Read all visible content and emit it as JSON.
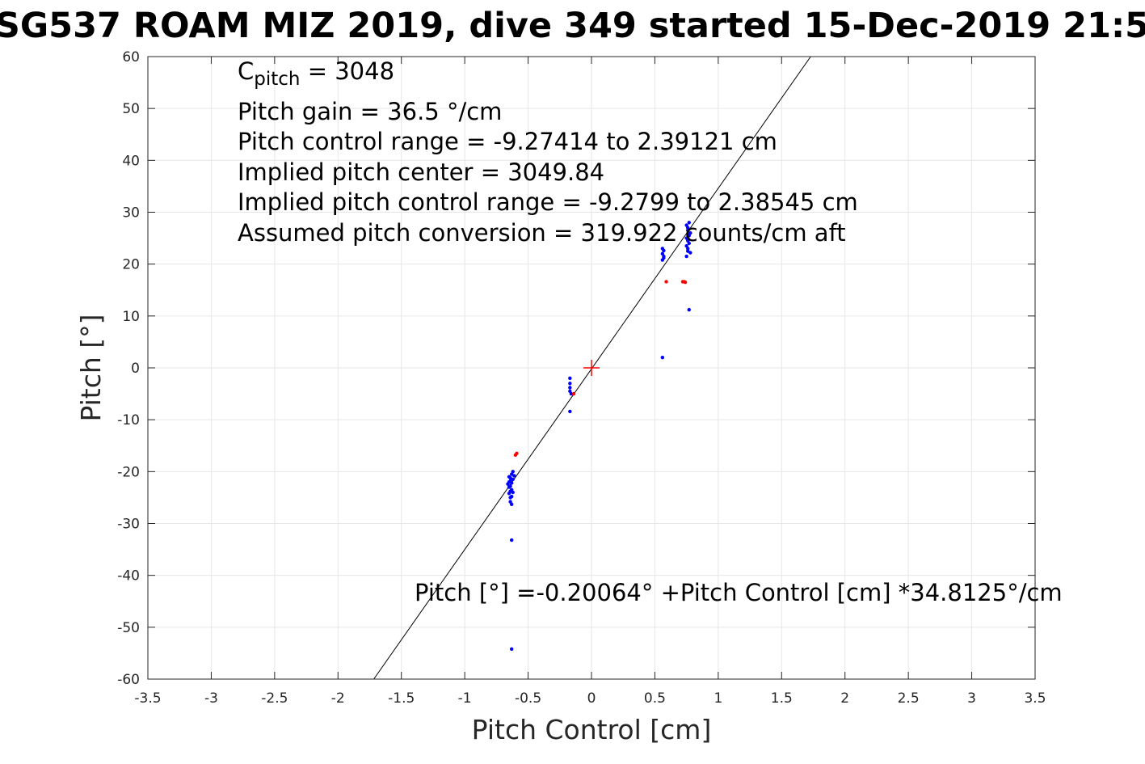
{
  "chart_data": {
    "type": "scatter",
    "title": "SG537 ROAM MIZ 2019, dive 349 started 15-Dec-2019 21:5",
    "xlabel": "Pitch Control [cm]",
    "ylabel": "Pitch [°]",
    "xlim": [
      -3.5,
      3.5
    ],
    "ylim": [
      -60,
      60
    ],
    "xticks": [
      -3.5,
      -3,
      -2.5,
      -2,
      -1.5,
      -1,
      -0.5,
      0,
      0.5,
      1,
      1.5,
      2,
      2.5,
      3,
      3.5
    ],
    "xtick_labels": [
      "-3.5",
      "-3",
      "-2.5",
      "-2",
      "-1.5",
      "-1",
      "-0.5",
      "0",
      "0.5",
      "1",
      "1.5",
      "2",
      "2.5",
      "3",
      "3.5"
    ],
    "yticks": [
      -60,
      -50,
      -40,
      -30,
      -20,
      -10,
      0,
      10,
      20,
      30,
      40,
      50,
      60
    ],
    "ytick_labels": [
      "-60",
      "-50",
      "-40",
      "-30",
      "-20",
      "-10",
      "0",
      "10",
      "20",
      "30",
      "40",
      "50",
      "60"
    ],
    "grid": true,
    "fit_line": {
      "intercept": -0.20064,
      "slope": 34.8125,
      "color": "#000000"
    },
    "center_marker": {
      "x": 0,
      "y": 0,
      "color": "#ff0000"
    },
    "series": [
      {
        "color": "#0000ff",
        "points": [
          [
            -0.65,
            -22.0
          ],
          [
            -0.64,
            -21.2
          ],
          [
            -0.64,
            -22.8
          ],
          [
            -0.63,
            -23.5
          ],
          [
            -0.65,
            -24.2
          ],
          [
            -0.64,
            -25.0
          ],
          [
            -0.63,
            -20.5
          ],
          [
            -0.62,
            -20.0
          ],
          [
            -0.64,
            -21.8
          ],
          [
            -0.65,
            -23.0
          ],
          [
            -0.63,
            -24.8
          ],
          [
            -0.64,
            -25.8
          ],
          [
            -0.63,
            -26.3
          ],
          [
            -0.62,
            -21.5
          ],
          [
            -0.61,
            -20.8
          ],
          [
            -0.66,
            -22.4
          ],
          [
            -0.64,
            -23.8
          ],
          [
            -0.63,
            -22.2
          ],
          [
            -0.62,
            -24.0
          ],
          [
            -0.65,
            -21.0
          ],
          [
            -0.63,
            -33.2
          ],
          [
            -0.63,
            -54.2
          ],
          [
            -0.17,
            -2.0
          ],
          [
            -0.17,
            -3.0
          ],
          [
            -0.17,
            -3.8
          ],
          [
            -0.17,
            -4.5
          ],
          [
            -0.16,
            -5.0
          ],
          [
            -0.17,
            -8.4
          ],
          [
            0.56,
            20.8
          ],
          [
            0.57,
            21.5
          ],
          [
            0.56,
            22.0
          ],
          [
            0.57,
            22.6
          ],
          [
            0.56,
            23.0
          ],
          [
            0.57,
            21.2
          ],
          [
            0.56,
            2.0
          ],
          [
            0.75,
            21.5
          ],
          [
            0.76,
            22.5
          ],
          [
            0.75,
            23.5
          ],
          [
            0.76,
            24.5
          ],
          [
            0.77,
            25.5
          ],
          [
            0.76,
            26.5
          ],
          [
            0.75,
            27.5
          ],
          [
            0.77,
            28.0
          ],
          [
            0.76,
            27.0
          ],
          [
            0.78,
            26.0
          ],
          [
            0.75,
            25.0
          ],
          [
            0.77,
            24.0
          ],
          [
            0.76,
            23.0
          ],
          [
            0.78,
            22.2
          ],
          [
            0.77,
            11.2
          ]
        ]
      },
      {
        "color": "#ff0000",
        "points": [
          [
            -0.59,
            -16.5
          ],
          [
            -0.6,
            -16.8
          ],
          [
            -0.14,
            -5.0
          ],
          [
            0.59,
            16.6
          ],
          [
            0.72,
            16.6
          ],
          [
            0.73,
            16.6
          ],
          [
            0.74,
            16.5
          ]
        ]
      }
    ],
    "annotations": [
      {
        "parts": [
          {
            "t": "C"
          },
          {
            "t": "pitch",
            "sub": true
          },
          {
            "t": " = 3048"
          }
        ]
      },
      {
        "parts": [
          {
            "t": "Pitch gain = 36.5 °/cm"
          }
        ]
      },
      {
        "parts": [
          {
            "t": "Pitch control range = -9.27414 to 2.39121 cm"
          }
        ]
      },
      {
        "parts": [
          {
            "t": "Implied pitch center = 3049.84"
          }
        ]
      },
      {
        "parts": [
          {
            "t": "Implied pitch control range = -9.2799 to 2.38545 cm"
          }
        ]
      },
      {
        "parts": [
          {
            "t": "Assumed pitch conversion = 319.922 counts/cm aft"
          }
        ]
      }
    ],
    "fit_label": "Pitch [°] =-0.20064° +Pitch Control [cm] *34.8125°/cm"
  }
}
